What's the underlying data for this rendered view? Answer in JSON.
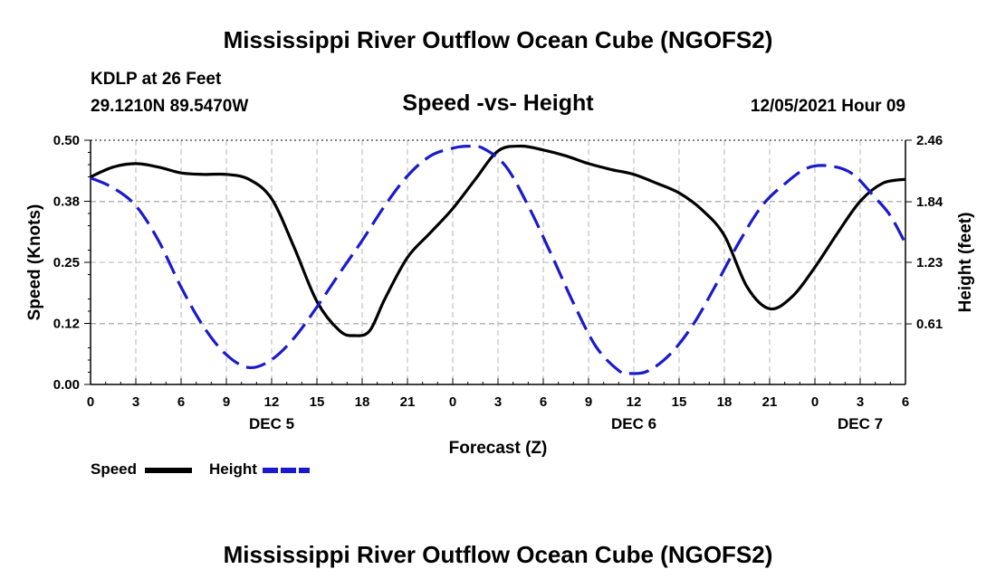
{
  "header": {
    "title": "Mississippi River Outflow Ocean Cube (NGOFS2)",
    "station": "KDLP at 26 Feet",
    "location": "29.1210N  89.5470W",
    "subtitle": "Speed -vs- Height",
    "datetime": "12/05/2021 Hour 09"
  },
  "footer": {
    "title": "Mississippi River Outflow Ocean Cube (NGOFS2)"
  },
  "legend": {
    "speed_label": "Speed",
    "height_label": "Height"
  },
  "colors": {
    "speed": "#000000",
    "height": "#1a1acc",
    "grid": "#b4b4b4"
  },
  "chart_data": {
    "type": "line",
    "xlabel": "Forecast (Z)",
    "ylabel": "Speed (Knots)",
    "y2label": "Height (feet)",
    "xlim": [
      0,
      54
    ],
    "ylim": [
      0,
      0.5
    ],
    "y2lim": [
      0,
      2.46
    ],
    "xticks": [
      0,
      3,
      6,
      9,
      12,
      15,
      18,
      21,
      24,
      27,
      30,
      33,
      36,
      39,
      42,
      45,
      48,
      51,
      54
    ],
    "xtick_labels": [
      "0",
      "3",
      "6",
      "9",
      "12",
      "15",
      "18",
      "21",
      "0",
      "3",
      "6",
      "9",
      "12",
      "15",
      "18",
      "21",
      "0",
      "3",
      "6"
    ],
    "day_labels": [
      {
        "text": "DEC 5",
        "x": 12
      },
      {
        "text": "DEC 6",
        "x": 36
      },
      {
        "text": "DEC 7",
        "x": 51
      }
    ],
    "yticks": [
      0.0,
      0.125,
      0.25,
      0.375,
      0.5
    ],
    "ytick_labels": [
      "0.00",
      "0.12",
      "0.25",
      "0.38",
      "0.50"
    ],
    "y2ticks": [
      0.61,
      1.23,
      1.84,
      2.46
    ],
    "y2tick_labels": [
      "0.61",
      "1.23",
      "1.84",
      "2.46"
    ],
    "grid": true,
    "series": [
      {
        "name": "Speed",
        "axis": "left",
        "style": "solid",
        "x": [
          0,
          1.5,
          3,
          4.5,
          6,
          7.5,
          9,
          10.5,
          12,
          13.5,
          15,
          16.5,
          17.5,
          18.5,
          19.5,
          21,
          22.5,
          24,
          25.5,
          27,
          28.5,
          30,
          31.5,
          33,
          34.5,
          36,
          37.5,
          39,
          40.5,
          42,
          43.5,
          45,
          46.5,
          48,
          49.5,
          51,
          52.5,
          54
        ],
        "values": [
          0.425,
          0.445,
          0.452,
          0.445,
          0.433,
          0.43,
          0.43,
          0.42,
          0.38,
          0.28,
          0.17,
          0.11,
          0.1,
          0.11,
          0.175,
          0.26,
          0.31,
          0.36,
          0.42,
          0.478,
          0.488,
          0.48,
          0.468,
          0.452,
          0.44,
          0.43,
          0.412,
          0.392,
          0.358,
          0.305,
          0.2,
          0.155,
          0.18,
          0.24,
          0.31,
          0.375,
          0.412,
          0.42
        ]
      },
      {
        "name": "Height",
        "axis": "right",
        "style": "dashed",
        "x": [
          0,
          1.5,
          3,
          4.5,
          6,
          7.5,
          9,
          10.5,
          12,
          13.5,
          15,
          16.5,
          18,
          19.5,
          21,
          22.5,
          24,
          25,
          26,
          27.5,
          29,
          30.5,
          32,
          33.5,
          35,
          35.8,
          37,
          38.5,
          40,
          41.5,
          43,
          44.5,
          46,
          47.5,
          49,
          50.5,
          52,
          53,
          54
        ],
        "values": [
          2.08,
          1.98,
          1.8,
          1.45,
          0.98,
          0.58,
          0.3,
          0.17,
          0.25,
          0.47,
          0.78,
          1.12,
          1.45,
          1.8,
          2.1,
          2.3,
          2.38,
          2.4,
          2.38,
          2.2,
          1.8,
          1.32,
          0.82,
          0.38,
          0.14,
          0.11,
          0.14,
          0.32,
          0.62,
          1.02,
          1.44,
          1.8,
          2.02,
          2.18,
          2.2,
          2.12,
          1.88,
          1.7,
          1.42
        ]
      }
    ]
  }
}
